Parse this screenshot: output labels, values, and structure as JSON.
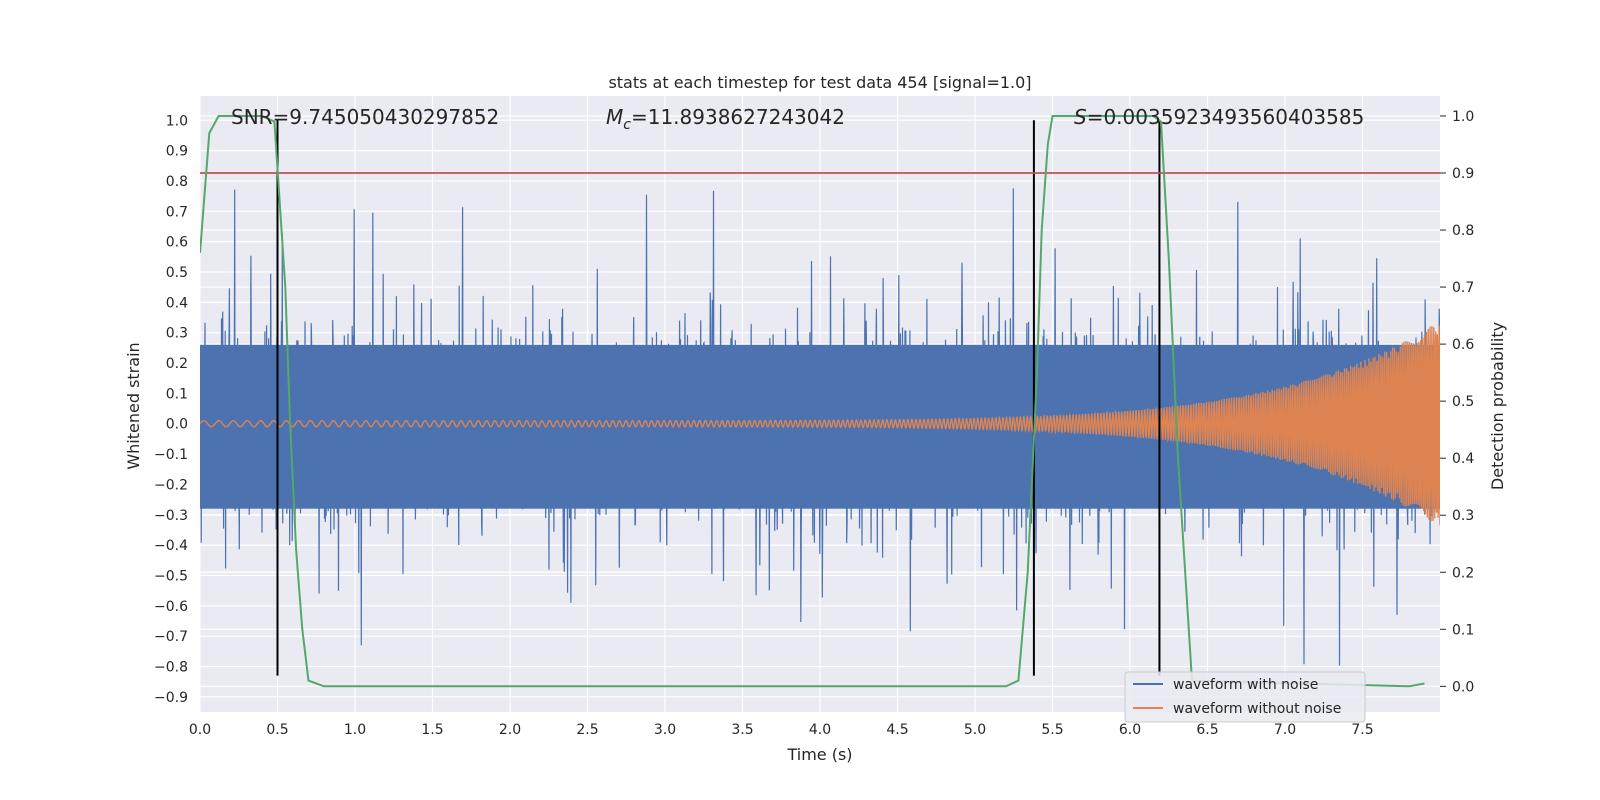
{
  "chart_data": {
    "type": "line",
    "title": "stats at each timestep for test data 454 [signal=1.0]",
    "xlabel": "Time (s)",
    "ylabel": "Whitened strain",
    "y2label": "Detection probability",
    "xlim": [
      0.0,
      8.0
    ],
    "ylim": [
      -0.95,
      1.08
    ],
    "y2lim": [
      -0.045,
      1.035
    ],
    "xticks": [
      "0.0",
      "0.5",
      "1.0",
      "1.5",
      "2.0",
      "2.5",
      "3.0",
      "3.5",
      "4.0",
      "4.5",
      "5.0",
      "5.5",
      "6.0",
      "6.5",
      "7.0",
      "7.5"
    ],
    "yticks": [
      "1.0",
      "0.9",
      "0.8",
      "0.7",
      "0.6",
      "0.5",
      "0.4",
      "0.3",
      "0.2",
      "0.1",
      "0.0",
      "−0.1",
      "−0.2",
      "−0.3",
      "−0.4",
      "−0.5",
      "−0.6",
      "−0.7",
      "−0.8",
      "−0.9"
    ],
    "y2ticks": [
      "1.0",
      "0.9",
      "0.8",
      "0.7",
      "0.6",
      "0.5",
      "0.4",
      "0.3",
      "0.2",
      "0.1",
      "0.0"
    ],
    "grid": true,
    "legend_position": "bottom-right",
    "annotations": {
      "snr": "SNR=9.745050430297852",
      "mc_symbol": "M",
      "mc_sub": "c",
      "mc_value": "=11.8938627243042",
      "s_symbol": "S",
      "s_value": "=0.0035923493560403585"
    },
    "series": [
      {
        "name": "waveform with noise",
        "color": "#4c72b0",
        "kind": "noise",
        "amplitude": 0.3,
        "max": 1.0,
        "min": -0.83
      },
      {
        "name": "waveform without noise",
        "color": "#dd8452",
        "kind": "chirp",
        "start_amplitude": 0.01,
        "end_amplitude": 0.34,
        "x_end": 8.0
      },
      {
        "name": "detection probability",
        "color": "#55a868",
        "axis": "right",
        "x": [
          0.0,
          0.06,
          0.12,
          0.4,
          0.48,
          0.55,
          0.58,
          0.62,
          0.66,
          0.7,
          0.8,
          5.2,
          5.28,
          5.34,
          5.4,
          5.43,
          5.47,
          5.5,
          6.15,
          6.2,
          6.25,
          6.31,
          6.4,
          7.8,
          7.9
        ],
        "y": [
          0.76,
          0.97,
          1.0,
          1.0,
          0.99,
          0.7,
          0.47,
          0.24,
          0.1,
          0.01,
          0.0,
          0.0,
          0.01,
          0.2,
          0.55,
          0.8,
          0.95,
          1.0,
          1.0,
          0.99,
          0.75,
          0.4,
          0.01,
          0.0,
          0.005
        ]
      }
    ],
    "threshold_line": {
      "y2": 0.9,
      "color": "#c44e52"
    },
    "vertical_markers": {
      "x": [
        0.5,
        5.38,
        6.19
      ],
      "ymin": -0.83,
      "ymax": 1.0,
      "color": "#000000"
    }
  }
}
